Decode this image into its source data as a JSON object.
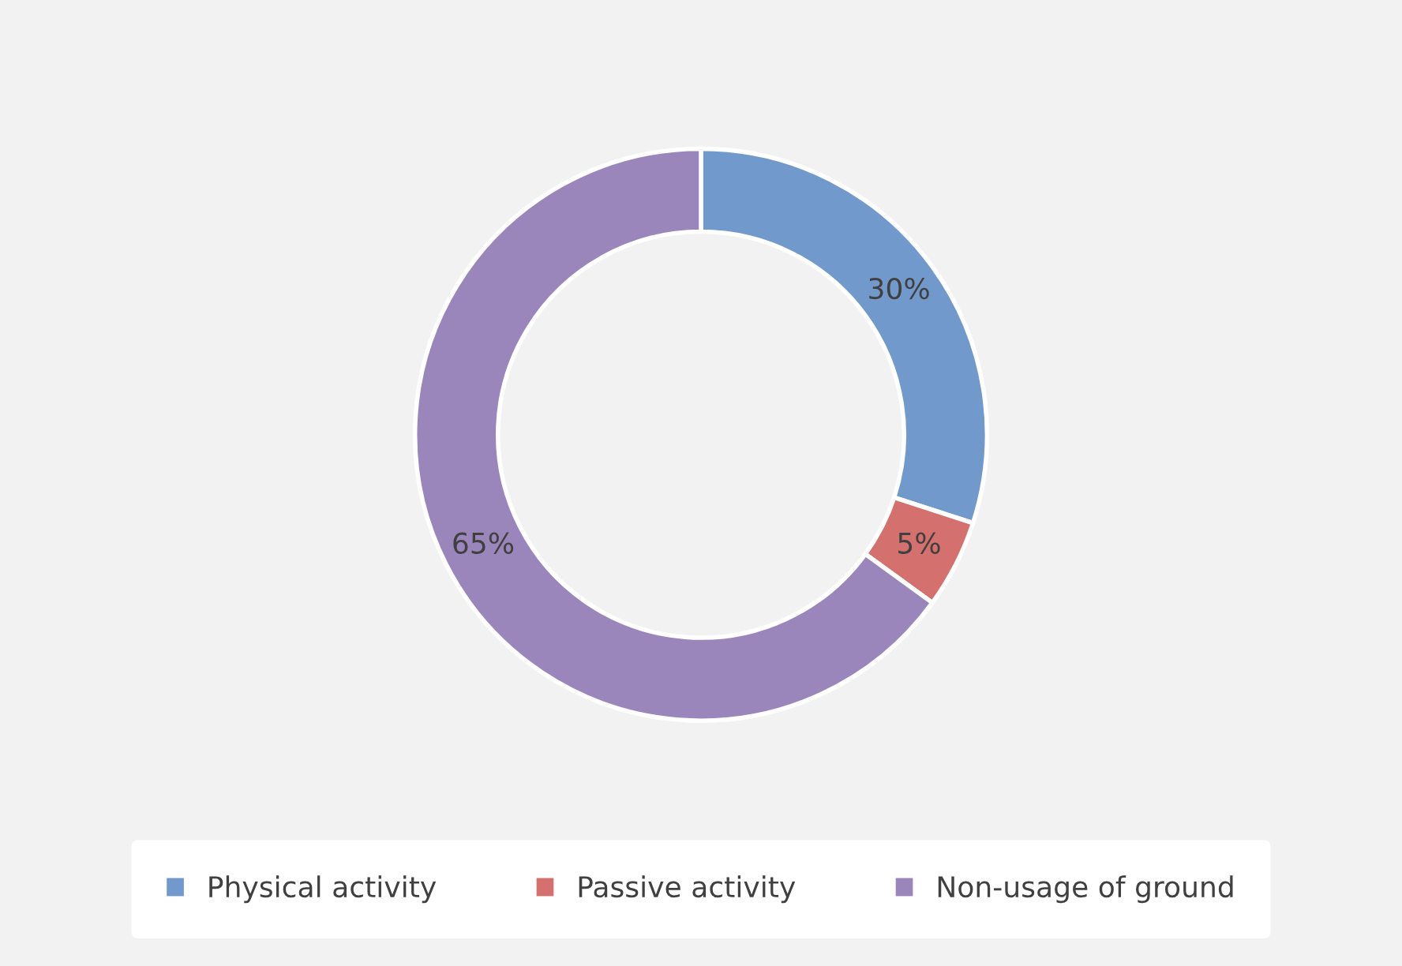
{
  "chart_data": {
    "type": "donut",
    "categories": [
      "Physical activity",
      "Passive activity",
      "Non-usage of ground"
    ],
    "values": [
      30,
      5,
      65
    ],
    "colors": [
      "#7199cb",
      "#d4716e",
      "#9b86bb"
    ],
    "value_labels": [
      "30%",
      "5%",
      "65%"
    ],
    "legend": "bottom"
  }
}
